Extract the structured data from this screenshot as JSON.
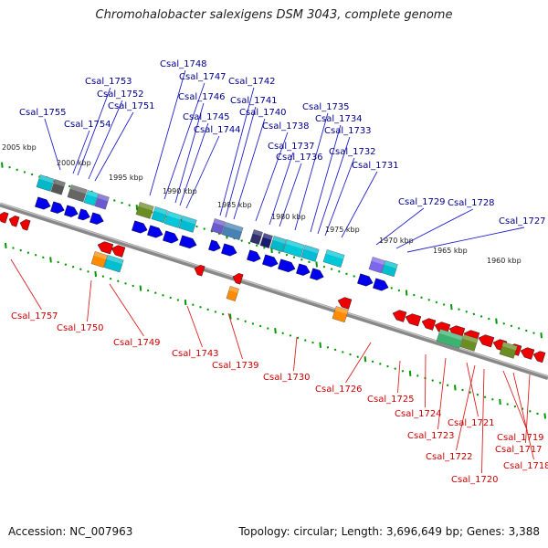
{
  "title": "Chromohalobacter salexigens DSM 3043, complete genome",
  "accession": "Accession: NC_007963",
  "stats": "Topology: circular; Length: 3,696,649 bp; Genes: 3,388",
  "colors": {
    "forward_gene": "#0000ee",
    "reverse_gene": "#ee0000",
    "forward_label": "#00008b",
    "reverse_label": "#cc0000",
    "backbone": "#888888",
    "tick": "#009900"
  },
  "upper_ruler": [
    {
      "label": "2005 kbp",
      "pos": 0
    },
    {
      "label": "2000 kbp",
      "pos": 1
    },
    {
      "label": "1995 kbp",
      "pos": 2
    },
    {
      "label": "1990 kbp",
      "pos": 3
    },
    {
      "label": "1985 kbp",
      "pos": 4
    },
    {
      "label": "1980 kbp",
      "pos": 5
    },
    {
      "label": "1975 kbp",
      "pos": 6
    },
    {
      "label": "1970 kbp",
      "pos": 7
    },
    {
      "label": "1965 kbp",
      "pos": 8
    },
    {
      "label": "1960 kbp",
      "pos": 9
    }
  ],
  "forward_labels": [
    "Csal_1755",
    "Csal_1754",
    "Csal_1753",
    "Csal_1752",
    "Csal_1751",
    "Csal_1748",
    "Csal_1747",
    "Csal_1746",
    "Csal_1745",
    "Csal_1744",
    "Csal_1742",
    "Csal_1741",
    "Csal_1740",
    "Csal_1738",
    "Csal_1737",
    "Csal_1736",
    "Csal_1735",
    "Csal_1734",
    "Csal_1733",
    "Csal_1732",
    "Csal_1731",
    "Csal_1729",
    "Csal_1728",
    "Csal_1727"
  ],
  "reverse_labels": [
    "Csal_1757",
    "Csal_1750",
    "Csal_1749",
    "Csal_1743",
    "Csal_1739",
    "Csal_1730",
    "Csal_1726",
    "Csal_1725",
    "Csal_1724",
    "Csal_1723",
    "Csal_1722",
    "Csal_1721",
    "Csal_1720",
    "Csal_1719",
    "Csal_1718",
    "Csal_1717"
  ]
}
